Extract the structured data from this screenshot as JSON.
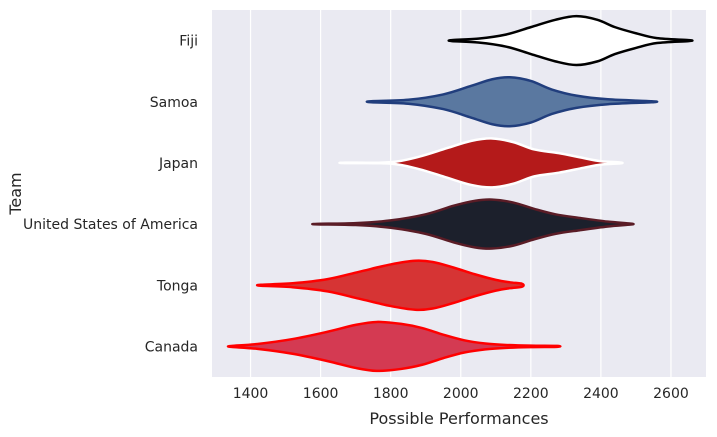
{
  "chart_data": {
    "type": "violin",
    "orientation": "horizontal",
    "xlabel": "Possible Performances",
    "ylabel": "Team",
    "xlim": [
      1290,
      2700
    ],
    "xticks": [
      1400,
      1600,
      1800,
      2000,
      2200,
      2400,
      2600
    ],
    "grid": true,
    "colors": {
      "background": "#eaeaf2",
      "grid": "#ffffff"
    },
    "categories": [
      "Fiji",
      "Samoa",
      "Japan",
      "United States of America",
      "Tonga",
      "Canada"
    ],
    "series": [
      {
        "name": "Fiji",
        "fill": "#ffffff",
        "edge": "#000000",
        "profile": [
          [
            1975,
            0.02
          ],
          [
            2050,
            0.08
          ],
          [
            2130,
            0.25
          ],
          [
            2200,
            0.55
          ],
          [
            2270,
            0.85
          ],
          [
            2330,
            1.0
          ],
          [
            2390,
            0.85
          ],
          [
            2440,
            0.55
          ],
          [
            2500,
            0.3
          ],
          [
            2560,
            0.1
          ],
          [
            2650,
            0.02
          ]
        ]
      },
      {
        "name": "Samoa",
        "fill": "#5a78a0",
        "edge": "#213e7d",
        "profile": [
          [
            1745,
            0.02
          ],
          [
            1850,
            0.08
          ],
          [
            1950,
            0.3
          ],
          [
            2030,
            0.65
          ],
          [
            2090,
            0.92
          ],
          [
            2140,
            1.0
          ],
          [
            2200,
            0.85
          ],
          [
            2260,
            0.5
          ],
          [
            2330,
            0.25
          ],
          [
            2420,
            0.1
          ],
          [
            2545,
            0.02
          ]
        ]
      },
      {
        "name": "Japan",
        "fill": "#b41a1a",
        "edge": "#ffffff",
        "profile": [
          [
            1670,
            0.01
          ],
          [
            1800,
            0.03
          ],
          [
            1880,
            0.25
          ],
          [
            1960,
            0.6
          ],
          [
            2030,
            0.9
          ],
          [
            2090,
            1.0
          ],
          [
            2150,
            0.85
          ],
          [
            2210,
            0.55
          ],
          [
            2280,
            0.4
          ],
          [
            2350,
            0.2
          ],
          [
            2400,
            0.07
          ],
          [
            2455,
            0.02
          ]
        ]
      },
      {
        "name": "United States of America",
        "fill": "#1c202c",
        "edge": "#5a1c26",
        "profile": [
          [
            1590,
            0.01
          ],
          [
            1700,
            0.04
          ],
          [
            1800,
            0.15
          ],
          [
            1900,
            0.4
          ],
          [
            1980,
            0.75
          ],
          [
            2040,
            0.95
          ],
          [
            2090,
            1.0
          ],
          [
            2150,
            0.88
          ],
          [
            2210,
            0.62
          ],
          [
            2270,
            0.4
          ],
          [
            2340,
            0.25
          ],
          [
            2420,
            0.1
          ],
          [
            2485,
            0.02
          ]
        ]
      },
      {
        "name": "Tonga",
        "fill": "#d63434",
        "edge": "#ff0000",
        "profile": [
          [
            1430,
            0.02
          ],
          [
            1520,
            0.08
          ],
          [
            1620,
            0.25
          ],
          [
            1710,
            0.55
          ],
          [
            1800,
            0.85
          ],
          [
            1870,
            1.0
          ],
          [
            1920,
            0.95
          ],
          [
            1980,
            0.72
          ],
          [
            2040,
            0.45
          ],
          [
            2100,
            0.22
          ],
          [
            2140,
            0.12
          ],
          [
            2175,
            0.06
          ]
        ]
      },
      {
        "name": "Canada",
        "fill": "#d43a52",
        "edge": "#ff0000",
        "profile": [
          [
            1345,
            0.02
          ],
          [
            1420,
            0.1
          ],
          [
            1520,
            0.3
          ],
          [
            1620,
            0.6
          ],
          [
            1700,
            0.88
          ],
          [
            1760,
            1.0
          ],
          [
            1830,
            0.92
          ],
          [
            1890,
            0.75
          ],
          [
            1950,
            0.48
          ],
          [
            2010,
            0.25
          ],
          [
            2070,
            0.12
          ],
          [
            2130,
            0.06
          ],
          [
            2200,
            0.03
          ],
          [
            2275,
            0.02
          ]
        ]
      }
    ]
  }
}
